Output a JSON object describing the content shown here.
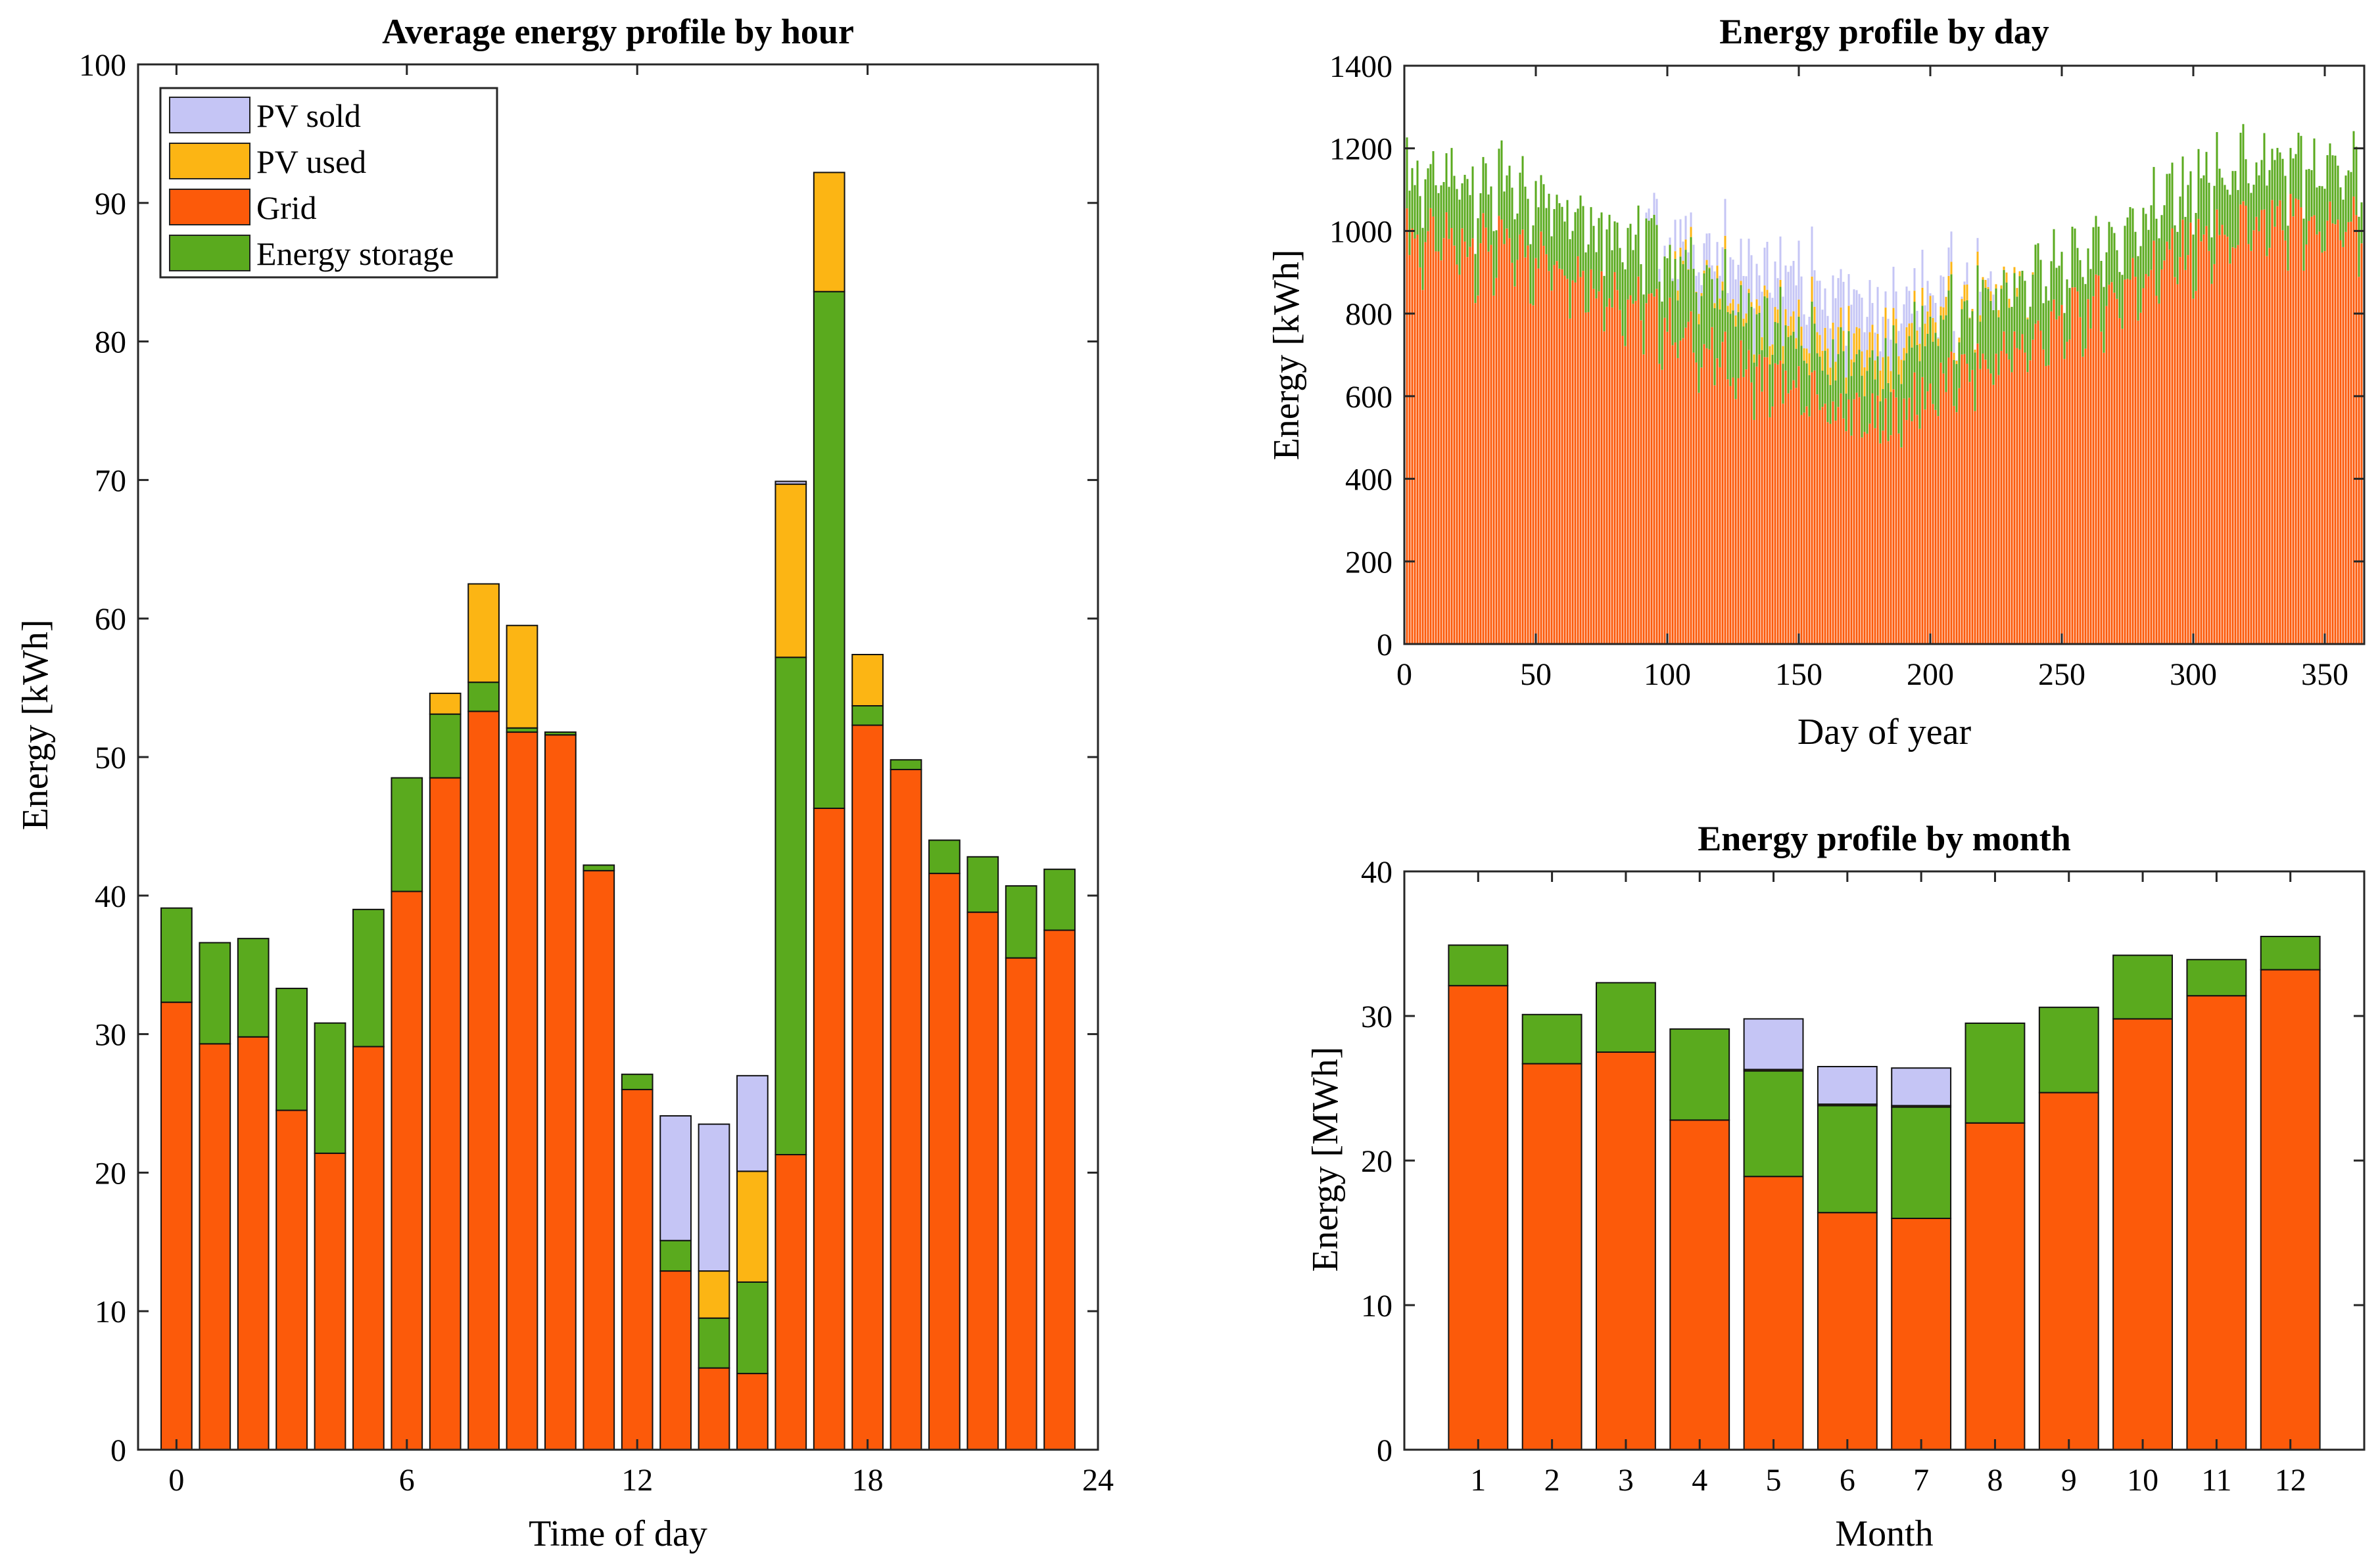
{
  "colors": {
    "pv_sold": "#c5c5f5",
    "pv_used": "#fcb514",
    "grid": "#fc5a0a",
    "storage": "#5aaa1e"
  },
  "chart_data": [
    {
      "type": "bar",
      "stacked": true,
      "title": "Average energy profile by hour",
      "xlabel": "Time of day",
      "ylabel": "Energy [kWh]",
      "xlim": [
        -1,
        24
      ],
      "ylim": [
        0,
        100
      ],
      "xticks": [
        0,
        6,
        12,
        18,
        24
      ],
      "yticks": [
        0,
        10,
        20,
        30,
        40,
        50,
        60,
        70,
        80,
        90,
        100
      ],
      "legend_position": "top-left",
      "legend": [
        "PV sold",
        "PV used",
        "Grid",
        "Energy storage"
      ],
      "x": [
        0,
        1,
        2,
        3,
        4,
        5,
        6,
        7,
        8,
        9,
        10,
        11,
        12,
        13,
        14,
        15,
        16,
        17,
        18,
        19,
        20,
        21,
        22,
        23
      ],
      "series": [
        {
          "name": "Grid",
          "key": "grid",
          "values": [
            32.3,
            29.3,
            29.8,
            24.5,
            21.4,
            29.1,
            40.3,
            48.5,
            53.3,
            51.8,
            51.6,
            41.8,
            26.0,
            12.9,
            5.9,
            5.5,
            21.3,
            46.3,
            52.3,
            49.1,
            41.6,
            38.8,
            35.5,
            37.5
          ]
        },
        {
          "name": "Energy storage",
          "key": "storage",
          "values": [
            6.8,
            7.3,
            7.1,
            8.8,
            9.4,
            9.9,
            8.2,
            4.6,
            2.1,
            0.3,
            0.2,
            0.4,
            1.1,
            2.2,
            3.6,
            6.6,
            35.9,
            37.3,
            1.4,
            0.7,
            2.4,
            4.0,
            5.2,
            4.4
          ]
        },
        {
          "name": "PV used",
          "key": "pv_used",
          "values": [
            0,
            0,
            0,
            0,
            0,
            0,
            0,
            1.5,
            7.1,
            7.4,
            0,
            0,
            0,
            0,
            3.4,
            8.0,
            12.5,
            8.6,
            3.7,
            0,
            0,
            0,
            0,
            0
          ]
        },
        {
          "name": "PV sold",
          "key": "pv_sold",
          "values": [
            0,
            0,
            0,
            0,
            0,
            0,
            0,
            0,
            0,
            0,
            0,
            0,
            0,
            9.0,
            10.6,
            6.9,
            0.2,
            0,
            0,
            0,
            0,
            0,
            0,
            0
          ]
        }
      ]
    },
    {
      "type": "bar",
      "stacked": true,
      "title": "Energy profile by day",
      "xlabel": "Day of year",
      "ylabel": "Energy [kWh]",
      "xlim": [
        0,
        365
      ],
      "ylim": [
        0,
        1400
      ],
      "xticks": [
        0,
        50,
        100,
        150,
        200,
        250,
        300,
        350
      ],
      "yticks": [
        0,
        200,
        400,
        600,
        800,
        1000,
        1200,
        1400
      ],
      "days": 365,
      "grid_trend": [
        [
          1,
          1000
        ],
        [
          30,
          980
        ],
        [
          60,
          950
        ],
        [
          90,
          830
        ],
        [
          120,
          700
        ],
        [
          150,
          620
        ],
        [
          180,
          540
        ],
        [
          200,
          620
        ],
        [
          230,
          720
        ],
        [
          260,
          820
        ],
        [
          290,
          950
        ],
        [
          320,
          1020
        ],
        [
          365,
          1040
        ]
      ],
      "storage_trend": [
        [
          1,
          150
        ],
        [
          60,
          150
        ],
        [
          100,
          170
        ],
        [
          130,
          150
        ],
        [
          150,
          130
        ],
        [
          180,
          120
        ],
        [
          200,
          150
        ],
        [
          250,
          150
        ],
        [
          300,
          150
        ],
        [
          365,
          140
        ]
      ],
      "pv_used_trend": [
        [
          1,
          0
        ],
        [
          100,
          0
        ],
        [
          120,
          20
        ],
        [
          150,
          40
        ],
        [
          180,
          60
        ],
        [
          200,
          40
        ],
        [
          220,
          10
        ],
        [
          240,
          0
        ],
        [
          365,
          0
        ]
      ],
      "pv_sold_trend": [
        [
          1,
          0
        ],
        [
          90,
          0
        ],
        [
          110,
          60
        ],
        [
          140,
          90
        ],
        [
          165,
          110
        ],
        [
          185,
          80
        ],
        [
          205,
          40
        ],
        [
          225,
          0
        ],
        [
          365,
          0
        ]
      ]
    },
    {
      "type": "bar",
      "stacked": true,
      "title": "Energy profile by month",
      "xlabel": "Month",
      "ylabel": "Energy [MWh]",
      "xlim": [
        0,
        13
      ],
      "ylim": [
        0,
        40
      ],
      "yticks": [
        0,
        10,
        20,
        30,
        40
      ],
      "categories": [
        "1",
        "2",
        "3",
        "4",
        "5",
        "6",
        "7",
        "8",
        "9",
        "10",
        "11",
        "12"
      ],
      "series": [
        {
          "name": "Grid",
          "key": "grid",
          "values": [
            32.1,
            26.7,
            27.5,
            22.8,
            18.9,
            16.4,
            16.0,
            22.6,
            24.7,
            29.8,
            31.4,
            33.2
          ]
        },
        {
          "name": "Energy storage",
          "key": "storage",
          "values": [
            2.8,
            3.4,
            4.8,
            6.3,
            7.3,
            7.4,
            7.7,
            6.9,
            5.9,
            4.4,
            2.5,
            2.3
          ]
        },
        {
          "name": "PV used",
          "key": "pv_used",
          "values": [
            0,
            0,
            0,
            0,
            0.1,
            0.1,
            0.1,
            0,
            0,
            0,
            0,
            0
          ]
        },
        {
          "name": "PV sold",
          "key": "pv_sold",
          "values": [
            0,
            0,
            0,
            0,
            3.5,
            2.6,
            2.6,
            0,
            0,
            0,
            0,
            0
          ]
        }
      ]
    }
  ]
}
